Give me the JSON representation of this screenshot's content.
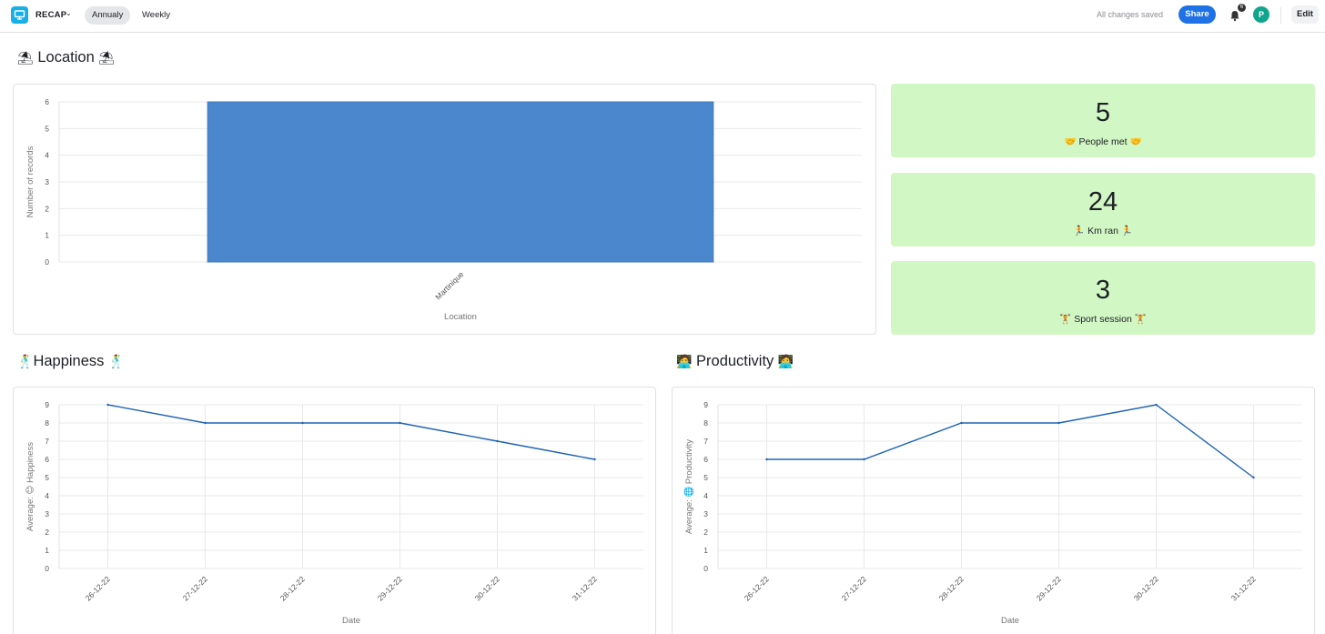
{
  "topbar": {
    "app_name": "RECAP",
    "tabs": [
      {
        "label": "Annualy",
        "active": true
      },
      {
        "label": "Weekly",
        "active": false
      }
    ],
    "status": "All changes saved",
    "share_label": "Share",
    "notification_count": "6",
    "avatar_initial": "P",
    "edit_label": "Edit"
  },
  "colors": {
    "accent": "#1f71e6",
    "bar": "#4a87cc",
    "line": "#1f63b5",
    "card": "#d1f7c4",
    "app_icon": "#18aee8",
    "avatar": "#12a58d"
  },
  "sections": {
    "location": {
      "emoji": "⛱",
      "title": "Location"
    },
    "happiness": {
      "emoji": "🕺",
      "title": "Happiness"
    },
    "productivity": {
      "emoji": "🧑‍💻",
      "title": "Productivity"
    }
  },
  "stats": [
    {
      "value": "5",
      "emoji": "🤝",
      "label": "People met"
    },
    {
      "value": "24",
      "emoji": "🏃",
      "label": "Km ran"
    },
    {
      "value": "3",
      "emoji": "🏋",
      "label": "Sport session"
    }
  ],
  "chart_data": [
    {
      "id": "location",
      "type": "bar",
      "categories": [
        "Martinique"
      ],
      "values": [
        6
      ],
      "xlabel": "Location",
      "ylabel": "Number of records",
      "ylim": [
        0,
        6
      ],
      "yticks": [
        0,
        1,
        2,
        3,
        4,
        5,
        6
      ],
      "grid": true
    },
    {
      "id": "happiness",
      "type": "line",
      "x": [
        "26-12-22",
        "27-12-22",
        "28-12-22",
        "29-12-22",
        "30-12-22",
        "31-12-22"
      ],
      "values": [
        9,
        8,
        8,
        8,
        7,
        6
      ],
      "xlabel": "Date",
      "ylabel": "Average: 😊 Happiness",
      "ylim": [
        0,
        9
      ],
      "yticks": [
        0,
        1,
        2,
        3,
        4,
        5,
        6,
        7,
        8,
        9
      ],
      "grid": true
    },
    {
      "id": "productivity",
      "type": "line",
      "x": [
        "26-12-22",
        "27-12-22",
        "28-12-22",
        "29-12-22",
        "30-12-22",
        "31-12-22"
      ],
      "values": [
        6,
        6,
        8,
        8,
        9,
        5
      ],
      "xlabel": "Date",
      "ylabel": "Average: 🌐 Productivity",
      "ylim": [
        0,
        9
      ],
      "yticks": [
        0,
        1,
        2,
        3,
        4,
        5,
        6,
        7,
        8,
        9
      ],
      "grid": true
    }
  ]
}
